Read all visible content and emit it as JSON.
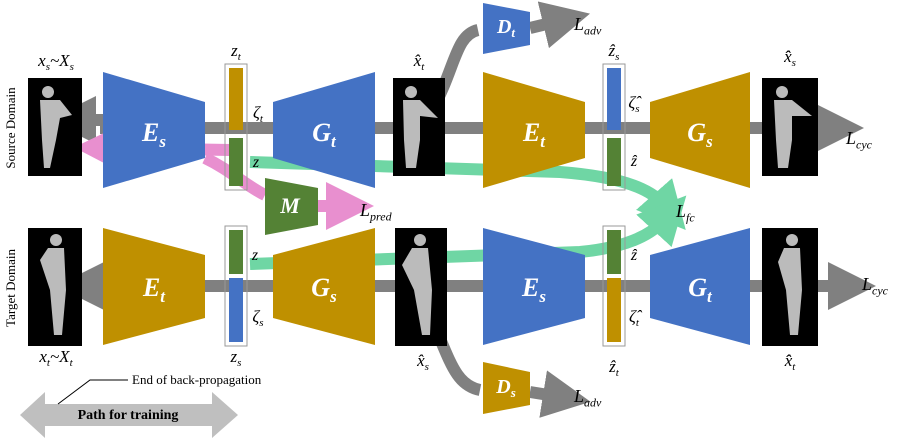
{
  "domains": {
    "source": "Source Domain",
    "target": "Target Domain"
  },
  "labels": [
    {
      "text": "x",
      "sub": "s",
      "tail": "~X",
      "tail_sub": "s"
    },
    {
      "text": "z",
      "sub": "t"
    },
    {
      "text": "ζ",
      "sub": "t"
    },
    {
      "text": "z"
    },
    {
      "text": "E",
      "sub": "s"
    },
    {
      "text": "G",
      "sub": "t"
    },
    {
      "text": "x̂",
      "sub": "t"
    },
    {
      "text": "D",
      "sub": "t"
    },
    {
      "text": "L",
      "sub": "adv"
    },
    {
      "text": "ẑ",
      "sub": "s"
    },
    {
      "text": "ζ̂",
      "sub": "s"
    },
    {
      "text": "ẑ"
    },
    {
      "text": "E",
      "sub": "t"
    },
    {
      "text": "G",
      "sub": "s"
    },
    {
      "text": "x̂̂",
      "sub": "s"
    },
    {
      "text": "L",
      "sub": "cyc"
    },
    {
      "text": "M"
    },
    {
      "text": "L",
      "sub": "pred"
    },
    {
      "text": "L",
      "sub": "fc"
    },
    {
      "text": "E",
      "sub": "t"
    },
    {
      "text": "z"
    },
    {
      "text": "ζ",
      "sub": "s"
    },
    {
      "text": "G",
      "sub": "s"
    },
    {
      "text": "E",
      "sub": "s"
    },
    {
      "text": "ẑ"
    },
    {
      "text": "ζ̂",
      "sub": "t"
    },
    {
      "text": "G",
      "sub": "t"
    },
    {
      "text": "L",
      "sub": "cyc"
    },
    {
      "text": "x",
      "sub": "t",
      "tail": "~X",
      "tail_sub": "t"
    },
    {
      "text": "z",
      "sub": "s"
    },
    {
      "text": "x̂",
      "sub": "s"
    },
    {
      "text": "D",
      "sub": "s"
    },
    {
      "text": "L",
      "sub": "adv"
    },
    {
      "text": "ẑ",
      "sub": "t"
    },
    {
      "text": "x̂̂",
      "sub": "t"
    }
  ],
  "legend": {
    "end_note": "End of back-propagation",
    "path": "Path for training"
  }
}
